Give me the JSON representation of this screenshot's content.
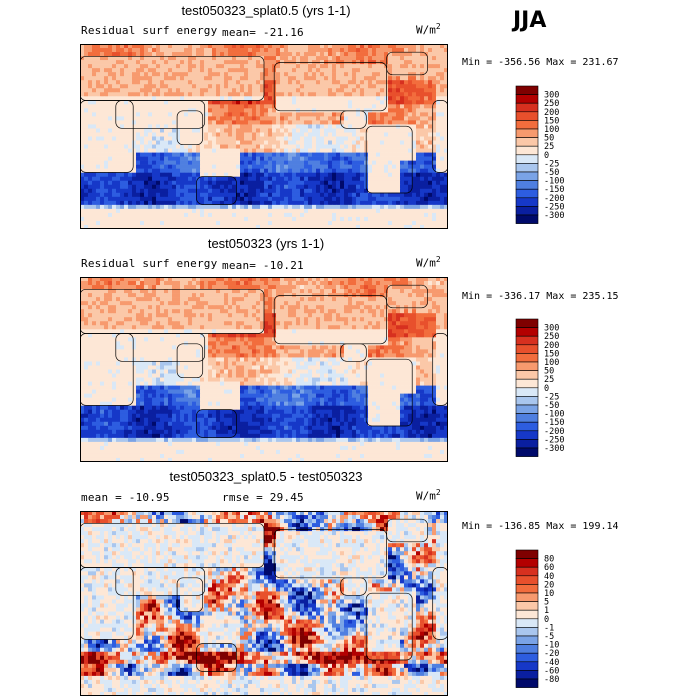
{
  "season": "JJA",
  "chart_data": [
    {
      "type": "heatmap",
      "title": "test050323_splat0.5 (yrs 1-1)",
      "left_label": "Residual surf energy",
      "stat_label": "mean= -21.16",
      "units": "W/m",
      "units_sup": "2",
      "mean": -21.16,
      "minmax_label": "Min = -356.56 Max = 231.67",
      "min": -356.56,
      "max": 231.67,
      "levels": [
        "300",
        "250",
        "200",
        "150",
        "100",
        "50",
        "25",
        "0",
        "-25",
        "-50",
        "-100",
        "-150",
        "-200",
        "-250",
        "-300"
      ],
      "colors": [
        "#7f0000",
        "#b30000",
        "#d7301f",
        "#e8502c",
        "#f26d3d",
        "#f79a6e",
        "#fbc8a8",
        "#fde7d6",
        "#d9e8f7",
        "#a9c6ee",
        "#7aa3e6",
        "#4f7fe0",
        "#2d5de0",
        "#1638c8",
        "#0a1fa0",
        "#000a6b"
      ]
    },
    {
      "type": "heatmap",
      "title": "test050323 (yrs 1-1)",
      "left_label": "Residual surf energy",
      "stat_label": "mean= -10.21",
      "units": "W/m",
      "units_sup": "2",
      "mean": -10.21,
      "minmax_label": "Min = -336.17 Max = 235.15",
      "min": -336.17,
      "max": 235.15,
      "levels": [
        "300",
        "250",
        "200",
        "150",
        "100",
        "50",
        "25",
        "0",
        "-25",
        "-50",
        "-100",
        "-150",
        "-200",
        "-250",
        "-300"
      ],
      "colors": [
        "#7f0000",
        "#b30000",
        "#d7301f",
        "#e8502c",
        "#f26d3d",
        "#f79a6e",
        "#fbc8a8",
        "#fde7d6",
        "#d9e8f7",
        "#a9c6ee",
        "#7aa3e6",
        "#4f7fe0",
        "#2d5de0",
        "#1638c8",
        "#0a1fa0",
        "#000a6b"
      ]
    },
    {
      "type": "heatmap",
      "title": "test050323_splat0.5 - test050323",
      "left_label": "mean = -10.95",
      "stat_label": "rmse =  29.45",
      "units": "W/m",
      "units_sup": "2",
      "mean": -10.95,
      "rmse": 29.45,
      "minmax_label": "Min = -136.85 Max = 199.14",
      "min": -136.85,
      "max": 199.14,
      "levels": [
        "80",
        "60",
        "40",
        "20",
        "10",
        "5",
        "1",
        "0",
        "-1",
        "-5",
        "-10",
        "-20",
        "-40",
        "-60",
        "-80"
      ],
      "colors": [
        "#7f0000",
        "#b30000",
        "#d7301f",
        "#e8502c",
        "#f26d3d",
        "#f79a6e",
        "#fbc8a8",
        "#fde7d6",
        "#d9e8f7",
        "#a9c6ee",
        "#7aa3e6",
        "#4f7fe0",
        "#2d5de0",
        "#1638c8",
        "#0a1fa0",
        "#000a6b"
      ]
    }
  ]
}
